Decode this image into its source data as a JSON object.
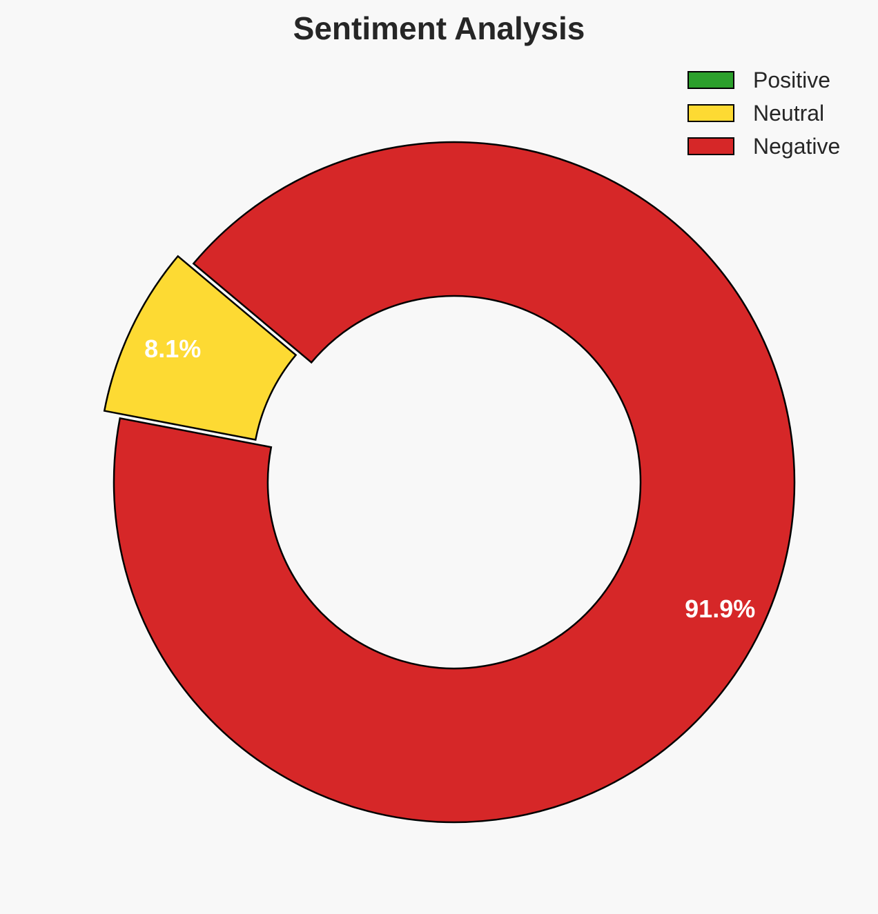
{
  "chart_data": {
    "type": "pie",
    "variant": "donut",
    "title": "Sentiment Analysis",
    "categories": [
      "Positive",
      "Neutral",
      "Negative"
    ],
    "values": [
      0.0,
      8.1,
      91.9
    ],
    "value_labels": [
      "",
      "8.1%",
      "91.9%"
    ],
    "colors": [
      "#2ca02c",
      "#fdda33",
      "#d62728"
    ],
    "exploded": [
      false,
      true,
      false
    ],
    "legend_position": "top-right",
    "start_angle_deg": 140,
    "direction": "counterclockwise"
  }
}
